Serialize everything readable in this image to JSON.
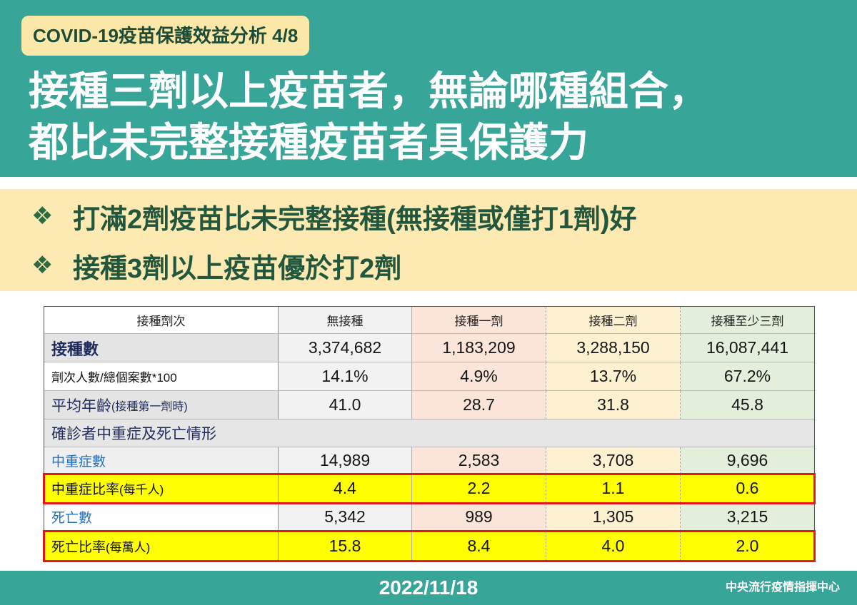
{
  "header": {
    "tag": "COVID-19疫苗保護效益分析 4/8",
    "title_lines": [
      "接種三劑以上疫苗者，無論哪種組合，",
      "都比未完整接種疫苗者具保護力"
    ]
  },
  "bullets": [
    {
      "symbol": "❖",
      "text": "打滿2劑疫苗比未完整接種(無接種或僅打1劑)好"
    },
    {
      "symbol": "❖",
      "text": "接種3劑以上疫苗優於打2劑"
    }
  ],
  "table": {
    "columns": [
      "接種劑次",
      "無接種",
      "接種一劑",
      "接種二劑",
      "接種至少三劑"
    ],
    "rows": [
      {
        "label": "接種數",
        "values": [
          "3,374,682",
          "1,183,209",
          "3,288,150",
          "16,087,441"
        ]
      },
      {
        "label": "劑次人數/總個案數*100",
        "values": [
          "14.1%",
          "4.9%",
          "13.7%",
          "67.2%"
        ]
      },
      {
        "label": "平均年齡",
        "note": "(接種第一劑時)",
        "values": [
          "41.0",
          "28.7",
          "31.8",
          "45.8"
        ]
      },
      {
        "label": "確診者中重症及死亡情形",
        "section": true
      },
      {
        "label": "中重症數",
        "values": [
          "14,989",
          "2,583",
          "3,708",
          "9,696"
        ]
      },
      {
        "label": "中重症比率",
        "note": "(每千人)",
        "values": [
          "4.4",
          "2.2",
          "1.1",
          "0.6"
        ],
        "highlighted": true
      },
      {
        "label": "死亡數",
        "values": [
          "5,342",
          "989",
          "1,305",
          "3,215"
        ]
      },
      {
        "label": "死亡比率",
        "note": "(每萬人)",
        "values": [
          "15.8",
          "8.4",
          "4.0",
          "2.0"
        ],
        "highlighted": true
      }
    ]
  },
  "footer": {
    "date": "2022/11/18",
    "org": "中央流行疫情指揮中心"
  },
  "colors": {
    "teal": "#37a597",
    "tag_bg": "#fbe8a8",
    "band": "#fde9b2",
    "highlight": "#ffff00",
    "highlight_border": "#e2161b",
    "col_unvaccinated": "#f2f2f2",
    "col_one_dose": "#fbe4d8",
    "col_two_doses": "#fdf1d2",
    "col_three_doses": "#e3efda"
  }
}
